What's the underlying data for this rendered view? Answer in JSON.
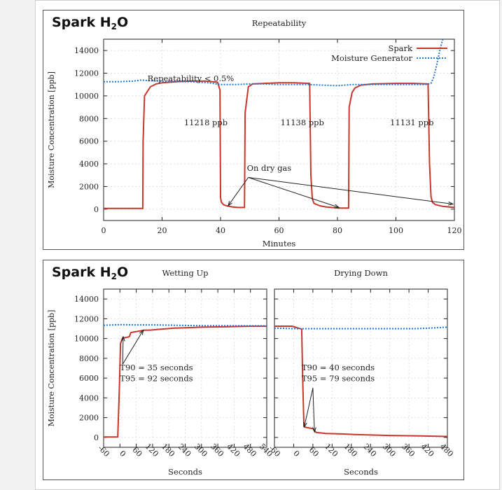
{
  "brand": {
    "prefix": "Spark H",
    "sub": "2",
    "suffix": "O"
  },
  "colors": {
    "spark": "#c8372a",
    "generator": "#2a76c8",
    "grid": "#d9d9d9",
    "axis": "#222222"
  },
  "chart_data": [
    {
      "type": "line",
      "title": "Repeatability",
      "xlabel": "Minutes",
      "ylabel": "Moisture Concentration [ppb]",
      "xlim": [
        0,
        120
      ],
      "ylim": [
        -1000,
        15000
      ],
      "xticks": [
        0,
        20,
        40,
        60,
        80,
        100,
        120
      ],
      "yticks": [
        0,
        2000,
        4000,
        6000,
        8000,
        10000,
        12000,
        14000
      ],
      "grid": true,
      "legend": "top-right",
      "series": [
        {
          "name": "Spark",
          "style": "solid",
          "x": [
            0,
            13.4,
            13.5,
            14,
            15,
            16,
            18,
            20,
            25,
            30,
            35,
            39,
            39.8,
            40.0,
            40.3,
            41,
            42,
            44,
            46,
            48.2,
            48.4,
            49.5,
            51,
            55,
            60,
            65,
            70.5,
            70.9,
            71.4,
            72,
            74,
            76,
            78,
            80,
            83.8,
            84.0,
            85,
            86,
            88,
            92,
            100,
            106,
            111,
            111.5,
            112,
            112.5,
            113.5,
            116,
            120
          ],
          "y": [
            60,
            60,
            6000,
            10000,
            10400,
            10800,
            11050,
            11150,
            11250,
            11300,
            11300,
            11200,
            10500,
            1000,
            600,
            400,
            300,
            200,
            150,
            150,
            8500,
            10800,
            11050,
            11100,
            11150,
            11150,
            11100,
            3000,
            900,
            500,
            300,
            200,
            150,
            100,
            100,
            9000,
            10300,
            10700,
            10950,
            11050,
            11100,
            11100,
            11050,
            4000,
            1100,
            600,
            400,
            250,
            150
          ]
        },
        {
          "name": "Moisture Generator",
          "style": "dotted",
          "x": [
            0,
            5,
            10,
            13,
            15,
            20,
            30,
            36,
            40,
            45,
            50,
            55,
            60,
            70,
            75,
            80,
            85,
            90,
            100,
            110,
            112,
            113,
            114,
            115,
            116
          ],
          "y": [
            11250,
            11250,
            11300,
            11400,
            11350,
            11280,
            11250,
            11150,
            11000,
            11000,
            11050,
            11050,
            11000,
            11000,
            10950,
            10900,
            11000,
            11000,
            11000,
            11000,
            11100,
            11700,
            12800,
            14000,
            15000
          ]
        }
      ],
      "annotations": [
        {
          "text": "Repeatability < 0.5%",
          "x": 15,
          "y": 11300
        },
        {
          "text": "11218 ppb",
          "x": 27.5,
          "y": 7400
        },
        {
          "text": "11138 ppb",
          "x": 60.5,
          "y": 7400
        },
        {
          "text": "11131 ppb",
          "x": 98,
          "y": 7400
        },
        {
          "text": "On dry gas",
          "x": 49,
          "y": 3400
        }
      ],
      "arrows": [
        {
          "from": [
            49.5,
            2800
          ],
          "to": [
            42.6,
            300
          ]
        },
        {
          "from": [
            49.5,
            2800
          ],
          "to": [
            80.5,
            150
          ]
        },
        {
          "from": [
            49.5,
            2800
          ],
          "to": [
            119.5,
            450
          ]
        }
      ]
    },
    {
      "type": "line",
      "title": "Wetting Up",
      "xlabel": "Seconds",
      "ylabel": "Moisture Concentration [ppb]",
      "xlim": [
        -60,
        540
      ],
      "ylim": [
        -1000,
        15000
      ],
      "xticks": [
        -60,
        0,
        60,
        120,
        180,
        240,
        300,
        360,
        420,
        480,
        540
      ],
      "yticks": [
        0,
        2000,
        4000,
        6000,
        8000,
        10000,
        12000,
        14000
      ],
      "grid": true,
      "series": [
        {
          "name": "",
          "style": "solid",
          "x": [
            -60,
            -8,
            -2,
            2,
            10,
            20,
            30,
            35,
            40,
            50,
            60,
            80,
            92,
            110,
            150,
            200,
            250,
            300,
            400,
            480,
            540
          ],
          "y": [
            50,
            50,
            5000,
            9500,
            10050,
            10100,
            10150,
            10200,
            10600,
            10650,
            10700,
            10800,
            10850,
            10850,
            10950,
            11050,
            11100,
            11150,
            11200,
            11250,
            11250
          ]
        },
        {
          "name": "",
          "style": "dotted",
          "x": [
            -60,
            0,
            60,
            120,
            200,
            300,
            400,
            480,
            540
          ],
          "y": [
            11350,
            11400,
            11380,
            11380,
            11350,
            11300,
            11300,
            11280,
            11280
          ]
        }
      ],
      "annotations": [
        {
          "text": "T90 = 35 seconds",
          "x": 0,
          "y": 6800
        },
        {
          "text": "T95 = 92 seconds",
          "x": 0,
          "y": 5700
        }
      ],
      "arrows": [
        {
          "from": [
            10,
            7400
          ],
          "to": [
            12,
            10200
          ]
        },
        {
          "from": [
            10,
            7400
          ],
          "to": [
            86,
            10850
          ]
        }
      ]
    },
    {
      "type": "line",
      "title": "Drying Down",
      "xlabel": "Seconds",
      "ylabel": "",
      "xlim": [
        -60,
        480
      ],
      "ylim": [
        -1000,
        15000
      ],
      "xticks": [
        -60,
        0,
        60,
        120,
        180,
        240,
        300,
        360,
        420,
        480
      ],
      "yticks": [
        0,
        2000,
        4000,
        6000,
        8000,
        10000,
        12000,
        14000
      ],
      "grid": true,
      "series": [
        {
          "name": "",
          "style": "solid",
          "x": [
            -60,
            -5,
            25,
            28,
            32,
            40,
            50,
            60,
            70,
            100,
            150,
            200,
            300,
            400,
            480
          ],
          "y": [
            11250,
            11250,
            10950,
            6000,
            1100,
            1000,
            950,
            900,
            500,
            400,
            350,
            280,
            200,
            150,
            100
          ]
        },
        {
          "name": "",
          "style": "dotted",
          "x": [
            -60,
            0,
            100,
            200,
            300,
            380,
            420,
            480
          ],
          "y": [
            11050,
            11000,
            11000,
            11000,
            11000,
            11000,
            11050,
            11150
          ]
        }
      ],
      "annotations": [
        {
          "text": "T90 = 40 seconds",
          "x": 25,
          "y": 6800
        },
        {
          "text": "T95 = 79 seconds",
          "x": 25,
          "y": 5700
        }
      ],
      "arrows": [
        {
          "from": [
            60,
            5000
          ],
          "to": [
            33,
            1050
          ]
        },
        {
          "from": [
            60,
            5000
          ],
          "to": [
            65,
            550
          ]
        }
      ]
    }
  ]
}
